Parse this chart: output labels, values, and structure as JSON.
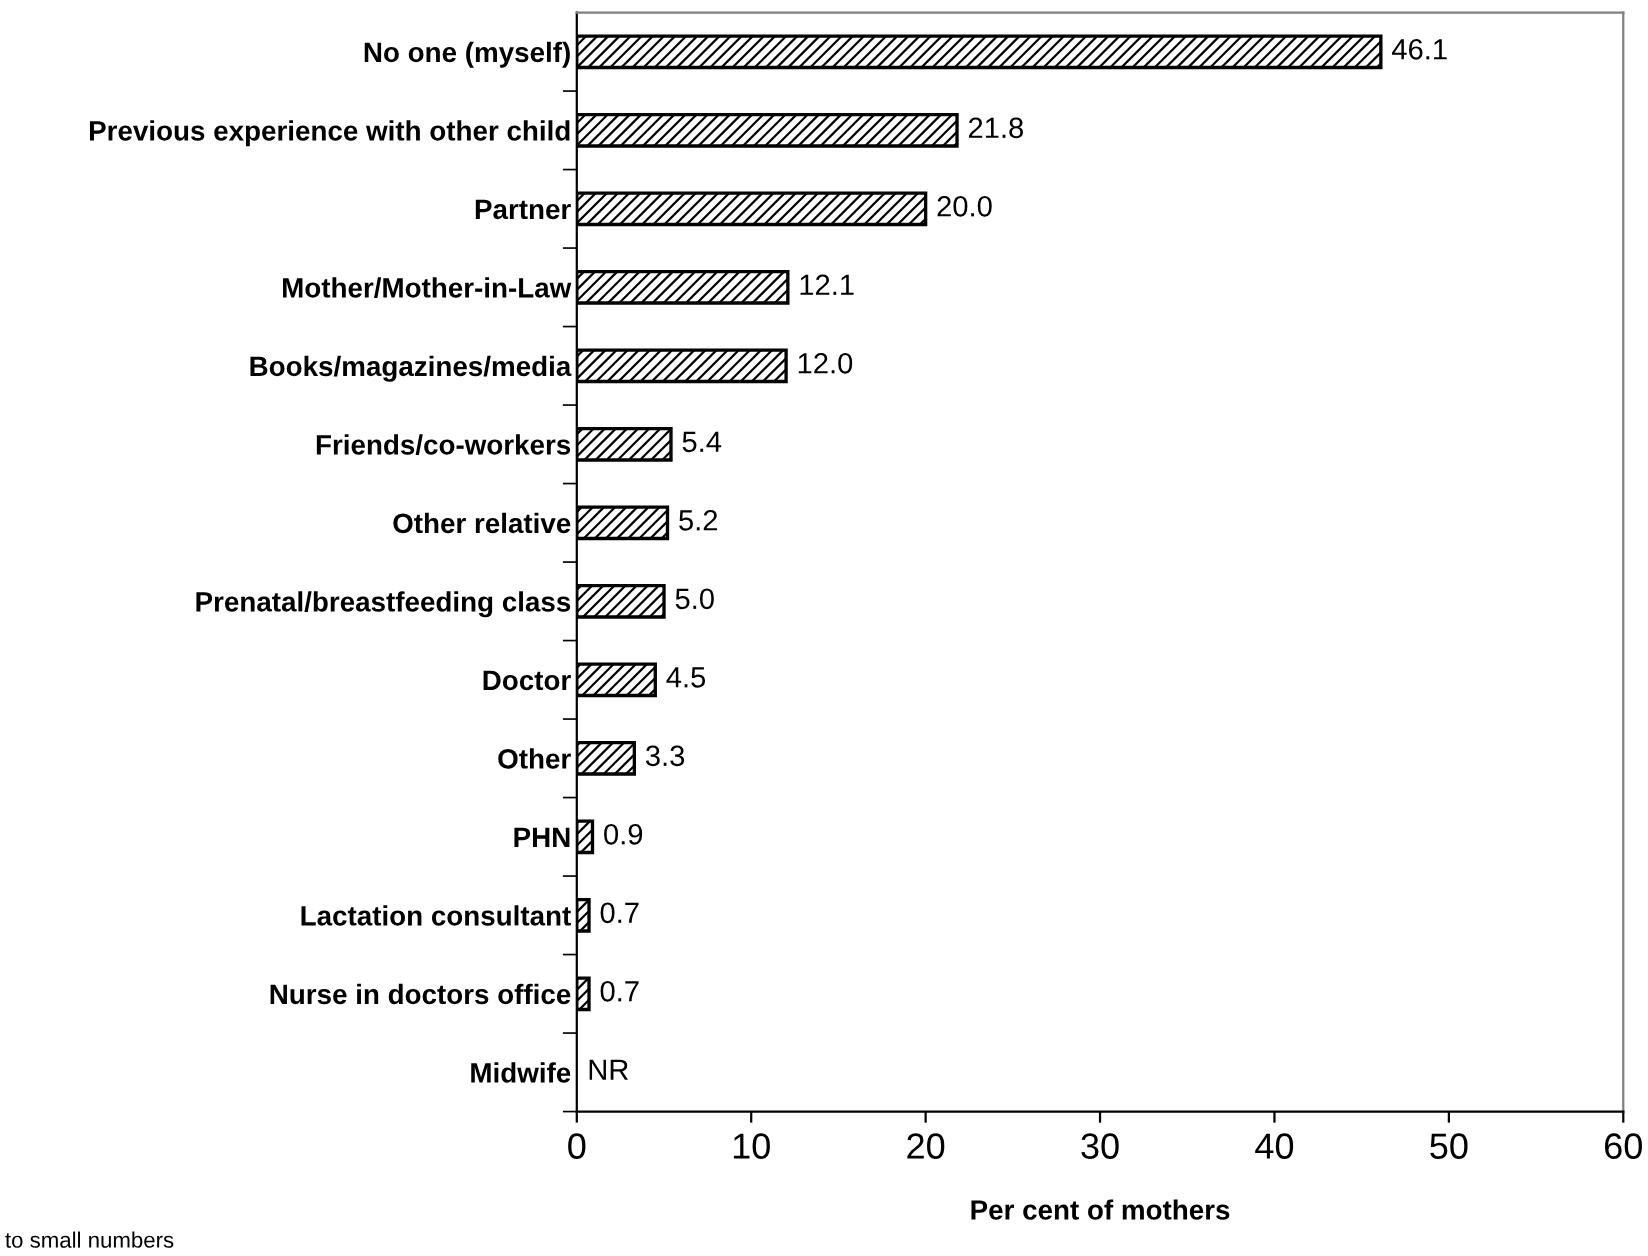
{
  "chart_data": {
    "type": "bar",
    "orientation": "horizontal",
    "xlabel": "Per cent of mothers",
    "categories": [
      "No one (myself)",
      "Previous experience with other child",
      "Partner",
      "Mother/Mother-in-Law",
      "Books/magazines/media",
      "Friends/co-workers",
      "Other relative",
      "Prenatal/breastfeeding class",
      "Doctor",
      "Other",
      "PHN",
      "Lactation consultant",
      "Nurse in doctors office",
      "Midwife"
    ],
    "values": [
      46.1,
      21.8,
      20.0,
      12.1,
      12.0,
      5.4,
      5.2,
      5.0,
      4.5,
      3.3,
      0.9,
      0.7,
      0.7,
      null
    ],
    "value_labels": [
      "46.1",
      "21.8",
      "20.0",
      "12.1",
      "12.0",
      "5.4",
      "5.2",
      "5.0",
      "4.5",
      "3.3",
      "0.9",
      "0.7",
      "0.7",
      "NR"
    ],
    "color": "#000000",
    "xlim": [
      0,
      60
    ],
    "xticks": [
      0,
      10,
      20,
      30,
      40,
      50,
      60
    ],
    "grid": false,
    "legend": false,
    "annotations": [
      "to small numbers"
    ]
  }
}
